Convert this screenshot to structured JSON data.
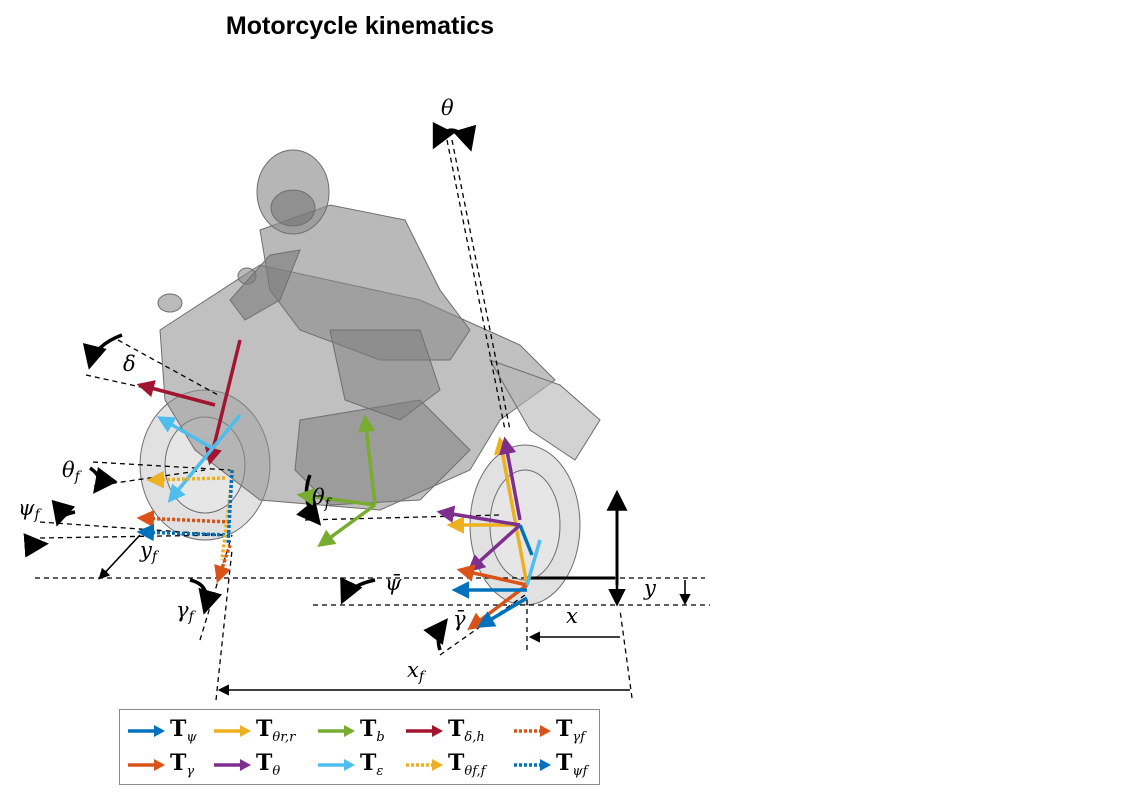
{
  "title": "Motorcycle kinematics",
  "labels": {
    "theta": "θ",
    "delta": "δ",
    "theta_f": "θ",
    "theta_f_sub": "f",
    "theta_f2": "θ",
    "theta_f2_sub": "f",
    "psi_f": "ψ",
    "psi_f_sub": "f",
    "y_f": "y",
    "y_f_sub": "f",
    "gamma_f": "γ",
    "gamma_f_sub": "f",
    "psi_bar": "ψ̄",
    "gamma_bar": "γ̄",
    "x_f": "x",
    "x_f_sub": "f",
    "x": "x",
    "y": "y"
  },
  "legend": [
    {
      "sym": "T",
      "sub": "ψ",
      "color": "#0072bd",
      "style": "solid"
    },
    {
      "sym": "T",
      "sub": "θr,r",
      "color": "#edb120",
      "style": "solid"
    },
    {
      "sym": "T",
      "sub": "b",
      "color": "#77ac30",
      "style": "solid"
    },
    {
      "sym": "T",
      "sub": "δ,h",
      "color": "#a2142f",
      "style": "solid"
    },
    {
      "sym": "T",
      "sub": "γf",
      "color": "#d95319",
      "style": "dotted"
    },
    {
      "sym": "T",
      "sub": "γ",
      "color": "#d95319",
      "style": "solid"
    },
    {
      "sym": "T",
      "sub": "θ",
      "color": "#7e2f8e",
      "style": "solid"
    },
    {
      "sym": "T",
      "sub": "ε",
      "color": "#4dbeee",
      "style": "solid"
    },
    {
      "sym": "T",
      "sub": "θf,f",
      "color": "#edb120",
      "style": "dotted"
    },
    {
      "sym": "T",
      "sub": "ψf",
      "color": "#0072bd",
      "style": "dotted"
    }
  ],
  "colors": {
    "blue": "#0072bd",
    "orange": "#d95319",
    "yellow": "#edb120",
    "purple": "#7e2f8e",
    "green": "#77ac30",
    "cyan": "#4dbeee",
    "red": "#a2142f"
  }
}
